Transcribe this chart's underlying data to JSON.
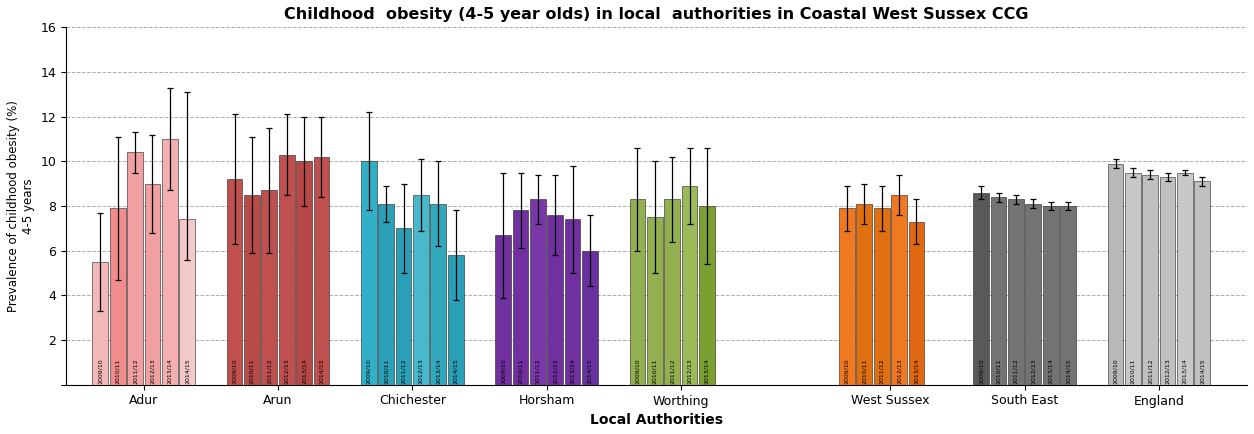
{
  "title": "Childhood  obesity (4-5 year olds) in local  authorities in Coastal West Sussex CCG",
  "xlabel": "Local Authorities",
  "ylabel": "Prevalence of childhood obesity (%)\n4-5 years",
  "ylim": [
    0,
    16
  ],
  "yticks": [
    0,
    2,
    4,
    6,
    8,
    10,
    12,
    14,
    16
  ],
  "groups": [
    "Adur",
    "Arun",
    "Chichester",
    "Horsham",
    "Worthing",
    "West Sussex",
    "South East",
    "England"
  ],
  "years": [
    "2009/10",
    "2010/11",
    "2011/12",
    "2012/13",
    "2013/14",
    "2014/15"
  ],
  "bar_values": [
    [
      5.5,
      7.9,
      10.4,
      9.0,
      11.0,
      7.4
    ],
    [
      9.2,
      8.5,
      8.7,
      10.3,
      10.0,
      10.2
    ],
    [
      10.0,
      8.1,
      7.0,
      8.5,
      8.1,
      5.8
    ],
    [
      6.7,
      7.8,
      8.3,
      7.6,
      7.4,
      6.0
    ],
    [
      8.3,
      7.5,
      8.3,
      8.9,
      8.0,
      null
    ],
    [
      7.9,
      8.1,
      7.9,
      8.5,
      7.3,
      null
    ],
    [
      8.6,
      8.4,
      8.3,
      8.1,
      8.0,
      8.0
    ],
    [
      9.9,
      9.5,
      9.4,
      9.3,
      9.5,
      9.1
    ]
  ],
  "error_upper": [
    [
      2.2,
      3.2,
      0.9,
      2.2,
      2.3,
      5.7
    ],
    [
      2.9,
      2.6,
      2.8,
      1.8,
      2.0,
      1.8
    ],
    [
      2.2,
      0.8,
      2.0,
      1.6,
      1.9,
      2.0
    ],
    [
      2.8,
      1.7,
      1.1,
      1.8,
      2.4,
      1.6
    ],
    [
      2.3,
      2.5,
      1.9,
      1.7,
      2.6,
      null
    ],
    [
      1.0,
      0.9,
      1.0,
      0.9,
      1.0,
      null
    ],
    [
      0.3,
      0.2,
      0.2,
      0.2,
      0.2,
      0.2
    ],
    [
      0.2,
      0.2,
      0.2,
      0.2,
      0.1,
      0.2
    ]
  ],
  "error_lower": [
    [
      2.2,
      3.2,
      0.9,
      2.2,
      2.3,
      1.8
    ],
    [
      2.9,
      2.6,
      2.8,
      1.8,
      2.0,
      1.8
    ],
    [
      2.2,
      0.8,
      2.0,
      1.6,
      1.9,
      2.0
    ],
    [
      2.8,
      1.7,
      1.1,
      1.8,
      2.4,
      1.6
    ],
    [
      2.3,
      2.5,
      1.9,
      1.7,
      2.6,
      null
    ],
    [
      1.0,
      0.9,
      1.0,
      0.9,
      1.0,
      null
    ],
    [
      0.3,
      0.2,
      0.2,
      0.2,
      0.2,
      0.2
    ],
    [
      0.2,
      0.2,
      0.2,
      0.2,
      0.1,
      0.2
    ]
  ],
  "group_colors": [
    [
      "#f2b8b8",
      "#f08c8c",
      "#f0a0a0",
      "#f0a0a0",
      "#f4b0b0",
      "#f2c8c8"
    ],
    [
      "#c0514d",
      "#b84a47",
      "#c05050",
      "#c05050",
      "#b84848",
      "#c05050"
    ],
    [
      "#31b0c8",
      "#2aa0b8",
      "#2aa0b8",
      "#48b8cc",
      "#31a8bc",
      "#2aa0b8"
    ],
    [
      "#7030a0",
      "#7030a0",
      "#7838a8",
      "#7030a0",
      "#7030a0",
      "#6830a0"
    ],
    [
      "#92b050",
      "#92b050",
      "#92b050",
      "#9bbb59",
      "#7aa030",
      "#92b050"
    ],
    [
      "#f07820",
      "#e07010",
      "#e07010",
      "#f07820",
      "#e06810",
      "#f07820"
    ],
    [
      "#595959",
      "#737373",
      "#737373",
      "#737373",
      "#737373",
      "#737373"
    ],
    [
      "#b8b8b8",
      "#c8c8c8",
      "#c0c0c0",
      "#c0c0c0",
      "#c8c8c8",
      "#c0c0c0"
    ]
  ],
  "group_gap_after": [
    4
  ]
}
